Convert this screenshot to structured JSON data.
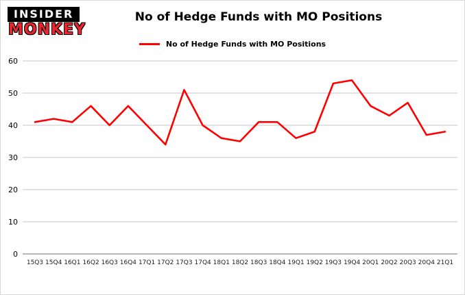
{
  "logo": {
    "line1": "INSIDER",
    "line2": "MONKEY"
  },
  "title": "No of Hedge Funds with MO Positions",
  "legend": {
    "label": "No of Hedge Funds with MO Positions"
  },
  "colors": {
    "line": "#ff0000",
    "grid": "#c6c6c6",
    "axis": "#8c8c8c",
    "text": "#000000",
    "tick_text": "#1a1a1a",
    "logo_red": "#e8262d"
  },
  "chart_data": {
    "type": "line",
    "title": "No of Hedge Funds with MO Positions",
    "categories": [
      "15Q3",
      "15Q4",
      "16Q1",
      "16Q2",
      "16Q3",
      "16Q4",
      "17Q1",
      "17Q2",
      "17Q3",
      "17Q4",
      "18Q1",
      "18Q2",
      "18Q3",
      "18Q4",
      "19Q1",
      "19Q2",
      "19Q3",
      "19Q4",
      "20Q1",
      "20Q2",
      "20Q3",
      "20Q4",
      "21Q1"
    ],
    "series": [
      {
        "name": "No of Hedge Funds with MO Positions",
        "color": "#ff0000",
        "values": [
          41,
          42,
          41,
          46,
          40,
          46,
          40,
          34,
          51,
          40,
          36,
          35,
          41,
          41,
          36,
          38,
          53,
          54,
          46,
          43,
          47,
          37,
          38
        ]
      }
    ],
    "xlabel": "",
    "ylabel": "",
    "ylim": [
      0,
      60
    ],
    "yticks": [
      0,
      10,
      20,
      30,
      40,
      50,
      60
    ],
    "grid": true,
    "legend_position": "top"
  }
}
